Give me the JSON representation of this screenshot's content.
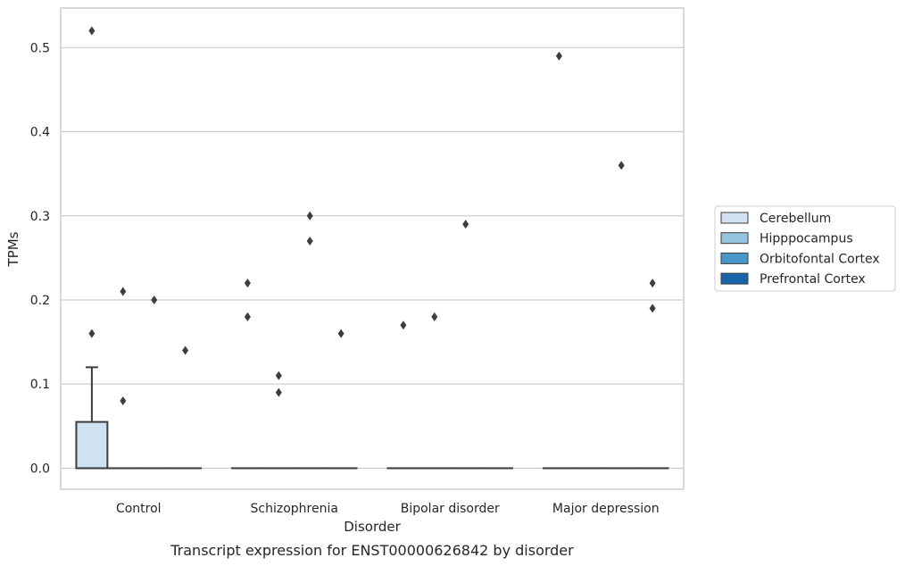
{
  "chart_data": {
    "type": "box",
    "caption": "Transcript expression for ENST00000626842 by disorder",
    "xlabel": "Disorder",
    "ylabel": "TPMs",
    "ylim": [
      -0.025,
      0.547
    ],
    "yticks": [
      0.0,
      0.1,
      0.2,
      0.3,
      0.4,
      0.5
    ],
    "ytick_labels": [
      "0.0",
      "0.1",
      "0.2",
      "0.3",
      "0.4",
      "0.5"
    ],
    "grid": "horizontal",
    "legend_position": "right",
    "categories": [
      "Control",
      "Schizophrenia",
      "Bipolar disorder",
      "Major depression"
    ],
    "series": [
      {
        "name": "Cerebellum",
        "color": "#d0e1f2",
        "boxes": [
          {
            "q1": 0.0,
            "median": 0.0,
            "q3": 0.055,
            "whisker_low": 0.0,
            "whisker_high": 0.12,
            "outliers": [
              0.52,
              0.16
            ]
          },
          {
            "q1": 0.0,
            "median": 0.0,
            "q3": 0.0,
            "whisker_low": 0.0,
            "whisker_high": 0.0,
            "outliers": [
              0.22,
              0.18
            ]
          },
          {
            "q1": 0.0,
            "median": 0.0,
            "q3": 0.0,
            "whisker_low": 0.0,
            "whisker_high": 0.0,
            "outliers": [
              0.17
            ]
          },
          {
            "q1": 0.0,
            "median": 0.0,
            "q3": 0.0,
            "whisker_low": 0.0,
            "whisker_high": 0.0,
            "outliers": [
              0.49
            ]
          }
        ]
      },
      {
        "name": "Hipppocampus",
        "color": "#94c4df",
        "boxes": [
          {
            "q1": 0.0,
            "median": 0.0,
            "q3": 0.0,
            "whisker_low": 0.0,
            "whisker_high": 0.0,
            "outliers": [
              0.21,
              0.08
            ]
          },
          {
            "q1": 0.0,
            "median": 0.0,
            "q3": 0.0,
            "whisker_low": 0.0,
            "whisker_high": 0.0,
            "outliers": [
              0.11,
              0.09
            ]
          },
          {
            "q1": 0.0,
            "median": 0.0,
            "q3": 0.0,
            "whisker_low": 0.0,
            "whisker_high": 0.0,
            "outliers": [
              0.18
            ]
          },
          {
            "q1": 0.0,
            "median": 0.0,
            "q3": 0.0,
            "whisker_low": 0.0,
            "whisker_high": 0.0,
            "outliers": []
          }
        ]
      },
      {
        "name": "Orbitofontal Cortex",
        "color": "#4a98c9",
        "boxes": [
          {
            "q1": 0.0,
            "median": 0.0,
            "q3": 0.0,
            "whisker_low": 0.0,
            "whisker_high": 0.0,
            "outliers": [
              0.2
            ]
          },
          {
            "q1": 0.0,
            "median": 0.0,
            "q3": 0.0,
            "whisker_low": 0.0,
            "whisker_high": 0.0,
            "outliers": [
              0.3,
              0.27
            ]
          },
          {
            "q1": 0.0,
            "median": 0.0,
            "q3": 0.0,
            "whisker_low": 0.0,
            "whisker_high": 0.0,
            "outliers": [
              0.29
            ]
          },
          {
            "q1": 0.0,
            "median": 0.0,
            "q3": 0.0,
            "whisker_low": 0.0,
            "whisker_high": 0.0,
            "outliers": [
              0.36
            ]
          }
        ]
      },
      {
        "name": "Prefrontal Cortex",
        "color": "#1764ab",
        "boxes": [
          {
            "q1": 0.0,
            "median": 0.0,
            "q3": 0.0,
            "whisker_low": 0.0,
            "whisker_high": 0.0,
            "outliers": [
              0.14
            ]
          },
          {
            "q1": 0.0,
            "median": 0.0,
            "q3": 0.0,
            "whisker_low": 0.0,
            "whisker_high": 0.0,
            "outliers": [
              0.16
            ]
          },
          {
            "q1": 0.0,
            "median": 0.0,
            "q3": 0.0,
            "whisker_low": 0.0,
            "whisker_high": 0.0,
            "outliers": []
          },
          {
            "q1": 0.0,
            "median": 0.0,
            "q3": 0.0,
            "whisker_low": 0.0,
            "whisker_high": 0.0,
            "outliers": [
              0.22,
              0.19
            ]
          }
        ]
      }
    ]
  }
}
